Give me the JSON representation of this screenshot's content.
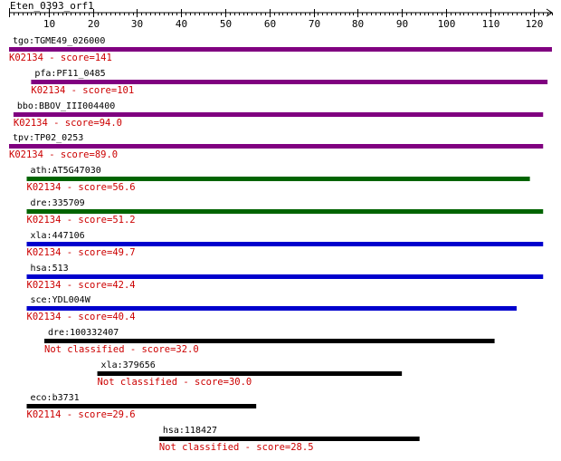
{
  "query": {
    "name": "Eten_0393_orf1",
    "length": 124
  },
  "axis": {
    "ticks": [
      10,
      20,
      30,
      40,
      50,
      60,
      70,
      80,
      90,
      100,
      110,
      120
    ]
  },
  "hits": [
    {
      "name": "tgo:TGME49_026000",
      "start": 1,
      "end": 124,
      "label": "K02134 - score=141",
      "color": "#800080"
    },
    {
      "name": "pfa:PF11_0485",
      "start": 6,
      "end": 123,
      "label": "K02134 - score=101",
      "color": "#800080"
    },
    {
      "name": "bbo:BBOV_III004400",
      "start": 2,
      "end": 122,
      "label": "K02134 - score=94.0",
      "color": "#800080"
    },
    {
      "name": "tpv:TP02_0253",
      "start": 1,
      "end": 122,
      "label": "K02134 - score=89.0",
      "color": "#800080"
    },
    {
      "name": "ath:AT5G47030",
      "start": 5,
      "end": 119,
      "label": "K02134 - score=56.6",
      "color": "#006400"
    },
    {
      "name": "dre:335709",
      "start": 5,
      "end": 122,
      "label": "K02134 - score=51.2",
      "color": "#006400"
    },
    {
      "name": "xla:447106",
      "start": 5,
      "end": 122,
      "label": "K02134 - score=49.7",
      "color": "#0000cd"
    },
    {
      "name": "hsa:513",
      "start": 5,
      "end": 122,
      "label": "K02134 - score=42.4",
      "color": "#0000cd"
    },
    {
      "name": "sce:YDL004W",
      "start": 5,
      "end": 116,
      "label": "K02134 - score=40.4",
      "color": "#0000cd"
    },
    {
      "name": "dre:100332407",
      "start": 9,
      "end": 111,
      "label": "Not classified - score=32.0",
      "color": "#000000"
    },
    {
      "name": "xla:379656",
      "start": 21,
      "end": 90,
      "label": "Not classified - score=30.0",
      "color": "#000000"
    },
    {
      "name": "eco:b3731",
      "start": 5,
      "end": 57,
      "label": "K02114 - score=29.6",
      "color": "#000000"
    },
    {
      "name": "hsa:118427",
      "start": 35,
      "end": 94,
      "label": "Not classified - score=28.5",
      "color": "#000000"
    }
  ],
  "label_color": "#cc0000"
}
